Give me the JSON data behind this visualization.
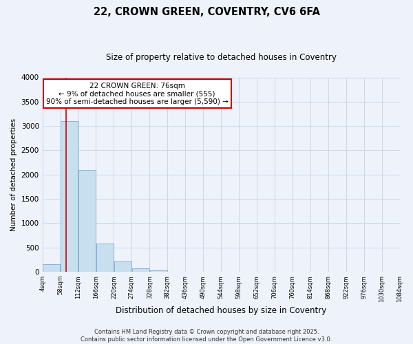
{
  "title": "22, CROWN GREEN, COVENTRY, CV6 6FA",
  "subtitle": "Size of property relative to detached houses in Coventry",
  "xlabel": "Distribution of detached houses by size in Coventry",
  "ylabel": "Number of detached properties",
  "bar_edges": [
    4,
    58,
    112,
    166,
    220,
    274,
    328,
    382,
    436,
    490,
    544,
    598,
    652,
    706,
    760,
    814,
    868,
    922,
    976,
    1030,
    1084
  ],
  "bar_heights": [
    155,
    3100,
    2090,
    575,
    210,
    65,
    35,
    0,
    0,
    0,
    0,
    0,
    0,
    0,
    0,
    0,
    0,
    0,
    0,
    0
  ],
  "bar_color": "#c8dff0",
  "bar_edgecolor": "#7aadcc",
  "vline_x": 76,
  "vline_color": "#cc0000",
  "annotation_lines": [
    "22 CROWN GREEN: 76sqm",
    "← 9% of detached houses are smaller (555)",
    "90% of semi-detached houses are larger (5,590) →"
  ],
  "annotation_fontsize": 7.5,
  "box_edgecolor": "#cc0000",
  "box_facecolor": "white",
  "ylim": [
    0,
    4000
  ],
  "xlim": [
    4,
    1084
  ],
  "yticks": [
    0,
    500,
    1000,
    1500,
    2000,
    2500,
    3000,
    3500,
    4000
  ],
  "xtick_labels": [
    "4sqm",
    "58sqm",
    "112sqm",
    "166sqm",
    "220sqm",
    "274sqm",
    "328sqm",
    "382sqm",
    "436sqm",
    "490sqm",
    "544sqm",
    "598sqm",
    "652sqm",
    "706sqm",
    "760sqm",
    "814sqm",
    "868sqm",
    "922sqm",
    "976sqm",
    "1030sqm",
    "1084sqm"
  ],
  "grid_color": "#c8d8e8",
  "background_color": "#eef2fb",
  "footer_line1": "Contains HM Land Registry data © Crown copyright and database right 2025.",
  "footer_line2": "Contains public sector information licensed under the Open Government Licence v3.0.",
  "footer_fontsize": 6.0,
  "title_fontsize": 10.5,
  "subtitle_fontsize": 8.5,
  "xlabel_fontsize": 8.5,
  "ylabel_fontsize": 7.5,
  "ytick_fontsize": 7.5,
  "xtick_fontsize": 6.0
}
